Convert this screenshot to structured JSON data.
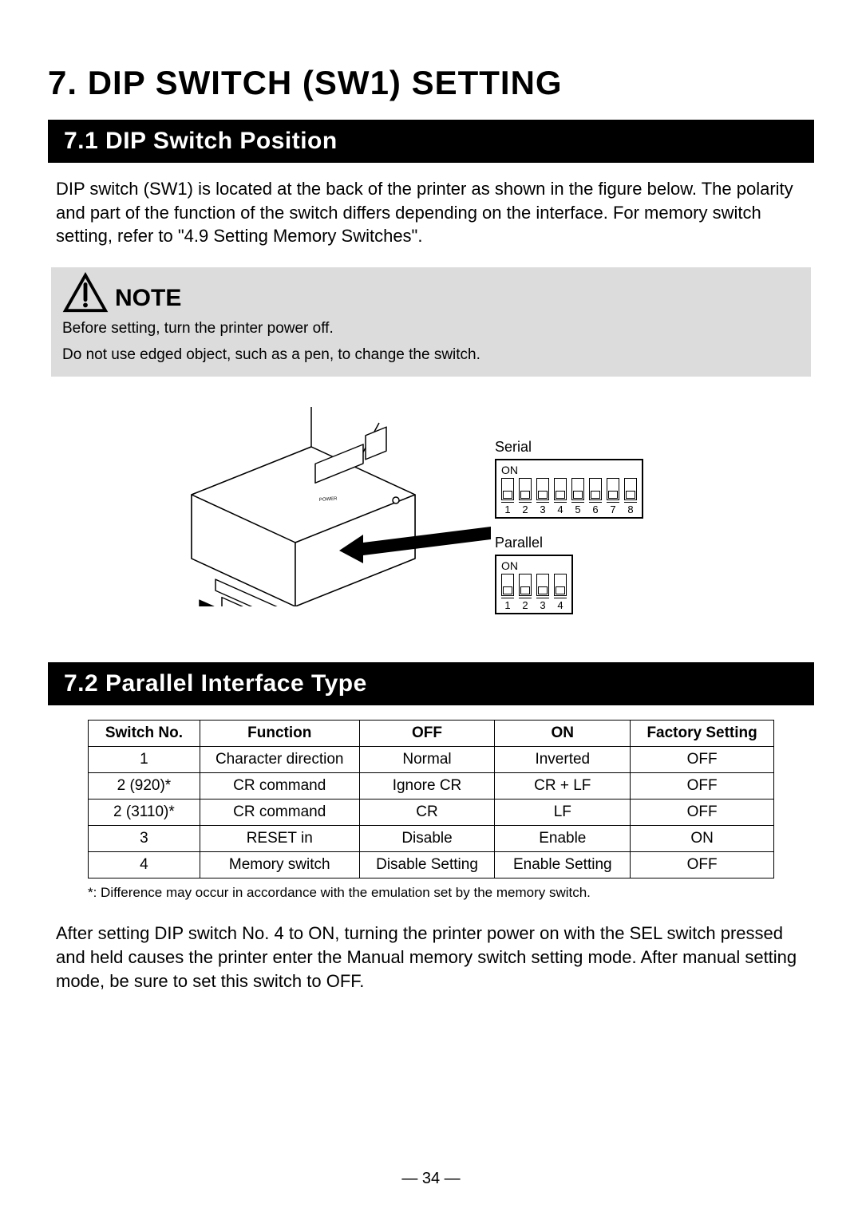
{
  "page": {
    "chapter_title": "7.  DIP SWITCH (SW1) SETTING",
    "page_number": "— 34 —"
  },
  "section_71": {
    "heading": "7.1  DIP Switch Position",
    "body": "DIP switch (SW1) is located at the back of the printer as shown in the figure below. The polarity and part of the function of the switch differs depending on the interface. For memory switch setting, refer to \"4.9 Setting Memory Switches\"."
  },
  "note": {
    "label": "NOTE",
    "line1": "Before setting, turn the printer power off.",
    "line2": "Do not use edged object, such as a pen, to change the switch.",
    "box_bg": "#dcdcdc",
    "icon_stroke": "#000000"
  },
  "figure": {
    "serial": {
      "label": "Serial",
      "on": "ON",
      "count": 8,
      "numbers": [
        "1",
        "2",
        "3",
        "4",
        "5",
        "6",
        "7",
        "8"
      ]
    },
    "parallel": {
      "label": "Parallel",
      "on": "ON",
      "count": 4,
      "numbers": [
        "1",
        "2",
        "3",
        "4"
      ]
    }
  },
  "section_72": {
    "heading": "7.2  Parallel Interface Type",
    "table": {
      "headers": [
        "Switch No.",
        "Function",
        "OFF",
        "ON",
        "Factory Setting"
      ],
      "rows": [
        [
          "1",
          "Character direction",
          "Normal",
          "Inverted",
          "OFF"
        ],
        [
          "2 (920)*",
          "CR command",
          "Ignore CR",
          "CR + LF",
          "OFF"
        ],
        [
          "2 (3110)*",
          "CR command",
          "CR",
          "LF",
          "OFF"
        ],
        [
          "3",
          "RESET in",
          "Disable",
          "Enable",
          "ON"
        ],
        [
          "4",
          "Memory switch",
          "Disable Setting",
          "Enable Setting",
          "OFF"
        ]
      ],
      "col_widths": [
        "140px",
        "200px",
        "170px",
        "170px",
        "180px"
      ]
    },
    "footnote": "*: Difference may occur in accordance with the emulation set by the memory switch.",
    "body_after": "After setting DIP switch No. 4 to ON, turning the printer power on with the SEL switch pressed and held causes the printer enter the Manual memory switch setting mode. After manual setting mode, be sure to set this switch to OFF."
  },
  "colors": {
    "black": "#000000",
    "white": "#ffffff",
    "note_bg": "#dcdcdc"
  }
}
